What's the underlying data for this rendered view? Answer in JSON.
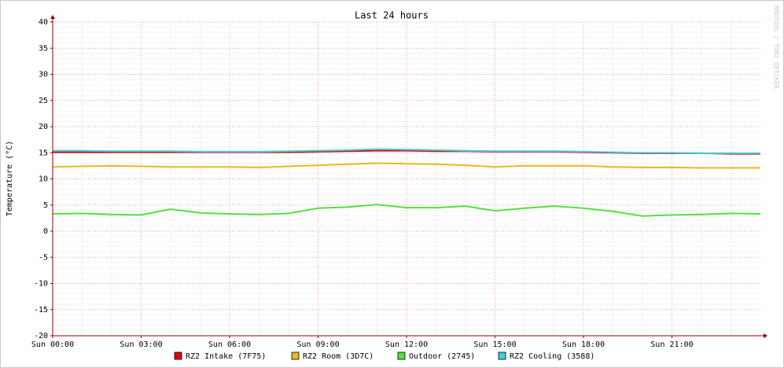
{
  "chart_data": {
    "type": "line",
    "title": "Last 24 hours",
    "y_label": "Temperature (°C)",
    "watermark": "RRDTOOL / TOBI OETIKER",
    "x": [
      0,
      1,
      2,
      3,
      4,
      5,
      6,
      7,
      8,
      9,
      10,
      11,
      12,
      13,
      14,
      15,
      16,
      17,
      18,
      19,
      20,
      21,
      22,
      23,
      24
    ],
    "xlim": [
      0,
      24
    ],
    "xticks": [
      {
        "value": 0,
        "label": "Sun 00:00"
      },
      {
        "value": 3,
        "label": "Sun 03:00"
      },
      {
        "value": 6,
        "label": "Sun 06:00"
      },
      {
        "value": 9,
        "label": "Sun 09:00"
      },
      {
        "value": 12,
        "label": "Sun 12:00"
      },
      {
        "value": 15,
        "label": "Sun 15:00"
      },
      {
        "value": 18,
        "label": "Sun 18:00"
      },
      {
        "value": 21,
        "label": "Sun 21:00"
      }
    ],
    "ylim": [
      -20,
      40
    ],
    "yticks": [
      -20,
      -15,
      -10,
      -5,
      0,
      5,
      10,
      15,
      20,
      25,
      30,
      35,
      40
    ],
    "grid": true,
    "series": [
      {
        "name": "RZ2 Intake (7F75)",
        "color": "#e00000",
        "values": [
          15.1,
          15.1,
          15.1,
          15.1,
          15.1,
          15.1,
          15.1,
          15.1,
          15.1,
          15.2,
          15.3,
          15.4,
          15.4,
          15.3,
          15.3,
          15.2,
          15.2,
          15.2,
          15.1,
          15.0,
          14.9,
          14.9,
          14.9,
          14.8,
          14.8
        ]
      },
      {
        "name": "RZ2 Room (3D7C)",
        "color": "#e8b820",
        "values": [
          12.3,
          12.4,
          12.5,
          12.4,
          12.3,
          12.3,
          12.3,
          12.2,
          12.4,
          12.6,
          12.8,
          13.0,
          12.9,
          12.8,
          12.6,
          12.3,
          12.5,
          12.5,
          12.5,
          12.3,
          12.2,
          12.2,
          12.1,
          12.1,
          12.1
        ]
      },
      {
        "name": "Outdoor (2745)",
        "color": "#54e040",
        "values": [
          3.3,
          3.4,
          3.2,
          3.1,
          4.2,
          3.5,
          3.3,
          3.2,
          3.4,
          4.4,
          4.6,
          5.1,
          4.5,
          4.5,
          4.8,
          3.9,
          4.4,
          4.8,
          4.4,
          3.8,
          2.9,
          3.1,
          3.2,
          3.4,
          3.3
        ]
      },
      {
        "name": "RZ2 Cooling (3588)",
        "color": "#40d0e0",
        "values": [
          15.4,
          15.4,
          15.3,
          15.3,
          15.3,
          15.2,
          15.2,
          15.2,
          15.3,
          15.4,
          15.5,
          15.7,
          15.6,
          15.5,
          15.4,
          15.3,
          15.3,
          15.3,
          15.2,
          15.1,
          15.0,
          15.0,
          14.9,
          14.9,
          14.9
        ]
      }
    ]
  }
}
